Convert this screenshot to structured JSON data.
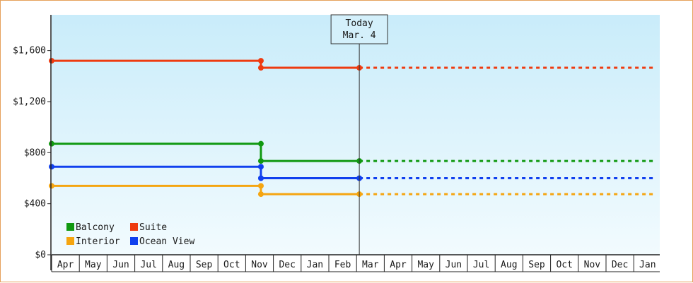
{
  "chart_data": {
    "type": "line",
    "subtype": "step",
    "title": "",
    "xlabel": "",
    "ylabel": "",
    "ylim": [
      0,
      1880
    ],
    "y_ticks": [
      "$0",
      "$400",
      "$800",
      "$1,200",
      "$1,600"
    ],
    "y_tick_values": [
      0,
      400,
      800,
      1200,
      1600
    ],
    "x_month_labels": [
      "Apr",
      "May",
      "Jun",
      "Jul",
      "Aug",
      "Sep",
      "Oct",
      "Nov",
      "Dec",
      "Jan",
      "Feb",
      "Mar",
      "Apr",
      "May",
      "Jun",
      "Jul",
      "Aug",
      "Sep",
      "Oct",
      "Nov",
      "Dec",
      "Jan"
    ],
    "x_range_months": [
      0,
      21.8
    ],
    "today_marker": {
      "line1": "Today",
      "line2": "Mar. 4",
      "x_month": 11.1
    },
    "grid": false,
    "legend": {
      "placement": "bottom-left",
      "columns": 2
    },
    "series": [
      {
        "name": "Balcony",
        "color": "#119911",
        "points": [
          [
            0,
            870
          ],
          [
            7.55,
            870
          ],
          [
            7.55,
            735
          ],
          [
            11.1,
            735
          ]
        ],
        "projection": [
          [
            11.1,
            735
          ],
          [
            21.8,
            735
          ]
        ]
      },
      {
        "name": "Suite",
        "color": "#ee3b10",
        "points": [
          [
            0,
            1520
          ],
          [
            7.55,
            1520
          ],
          [
            7.55,
            1465
          ],
          [
            11.1,
            1465
          ]
        ],
        "projection": [
          [
            11.1,
            1465
          ],
          [
            21.8,
            1465
          ]
        ]
      },
      {
        "name": "Interior",
        "color": "#f5a510",
        "points": [
          [
            0,
            540
          ],
          [
            7.55,
            540
          ],
          [
            7.55,
            475
          ],
          [
            11.1,
            475
          ]
        ],
        "projection": [
          [
            11.1,
            475
          ],
          [
            21.8,
            475
          ]
        ]
      },
      {
        "name": "Ocean View",
        "color": "#1040ee",
        "points": [
          [
            0,
            690
          ],
          [
            7.55,
            690
          ],
          [
            7.55,
            600
          ],
          [
            11.1,
            600
          ]
        ],
        "projection": [
          [
            11.1,
            600
          ],
          [
            21.8,
            600
          ]
        ]
      }
    ]
  }
}
